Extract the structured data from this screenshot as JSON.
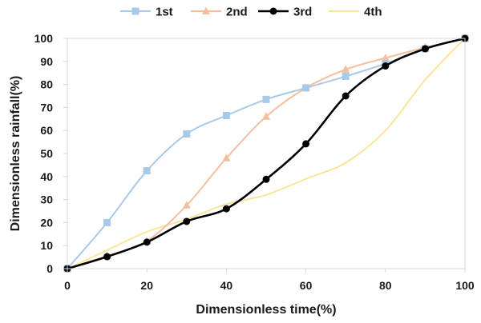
{
  "chart_data": {
    "type": "line",
    "title": "",
    "xlabel": "Dimensionless time(%)",
    "ylabel": "Dimensionless rainfall(%)",
    "xlim": [
      0,
      100
    ],
    "ylim": [
      0,
      100
    ],
    "xticks": [
      0,
      20,
      40,
      60,
      80,
      100
    ],
    "yticks": [
      0,
      10,
      20,
      30,
      40,
      50,
      60,
      70,
      80,
      90,
      100
    ],
    "grid": false,
    "legend_position": "top",
    "series": [
      {
        "name": "1st",
        "color": "#a9c9e8",
        "marker": "square",
        "x": [
          0,
          10,
          20,
          30,
          40,
          50,
          60,
          70,
          80,
          90,
          100
        ],
        "y": [
          0,
          20,
          42.5,
          58.5,
          66.5,
          73.5,
          78.5,
          83.5,
          89,
          95.5,
          100
        ]
      },
      {
        "name": "2nd",
        "color": "#f4bfa0",
        "marker": "triangle",
        "x": [
          0,
          10,
          20,
          30,
          40,
          50,
          60,
          70,
          80,
          90,
          100
        ],
        "y": [
          0,
          5.5,
          12,
          27.5,
          48,
          66,
          78.5,
          86.5,
          91.5,
          96,
          100
        ]
      },
      {
        "name": "3rd",
        "color": "#000000",
        "marker": "circle",
        "x": [
          0,
          10,
          20,
          30,
          40,
          50,
          60,
          70,
          80,
          90,
          100
        ],
        "y": [
          0,
          5.2,
          11.5,
          20.5,
          26,
          38.8,
          54.2,
          75,
          88,
          95.5,
          100
        ]
      },
      {
        "name": "4th",
        "color": "#f8e79a",
        "marker": "none",
        "x": [
          0,
          10,
          20,
          30,
          40,
          50,
          60,
          70,
          80,
          90,
          100
        ],
        "y": [
          0,
          8,
          16,
          21.5,
          28,
          32,
          39,
          46,
          60,
          82,
          100
        ]
      }
    ]
  }
}
